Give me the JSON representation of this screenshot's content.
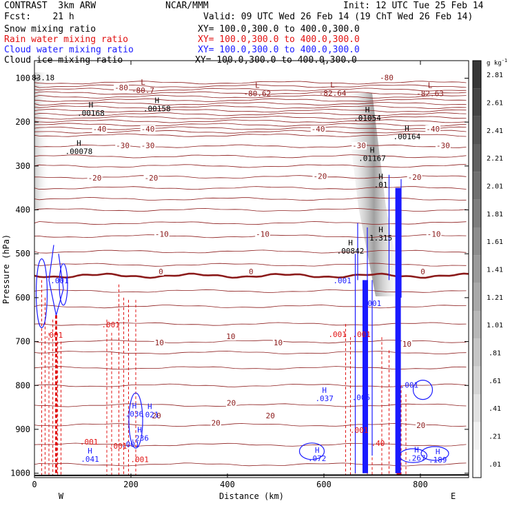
{
  "header": {
    "model": "CONTRAST  3km ARW",
    "center": "NCAR/MMM",
    "init": "Init: 12 UTC Tue 25 Feb 14",
    "fcst": "Fcst:    21 h",
    "valid": "Valid: 09 UTC Wed 26 Feb 14 (19 ChT Wed 26 Feb 14)",
    "fields": [
      {
        "name": "Snow mixing ratio",
        "xy": "XY= 100.0,300.0 to 400.0,300.0",
        "color": "#000000"
      },
      {
        "name": "Rain water mixing ratio",
        "xy": "XY= 100.0,300.0 to 400.0,300.0",
        "color": "#e01010"
      },
      {
        "name": "Cloud water mixing ratio",
        "xy": "XY= 100.0,300.0 to 400.0,300.0",
        "color": "#1a1aff"
      },
      {
        "name": "Cloud ice mixing ratio",
        "xy": "XY= 100.0,300.0 to 400.0,300.0",
        "color": "#000000"
      }
    ]
  },
  "colors": {
    "temperature": "#8b1a1a",
    "rain": "#e01010",
    "cloud_water": "#1a1aff",
    "cloud_ice": "#000000",
    "ground": "#000000"
  },
  "chart_data": {
    "type": "contour cross-section",
    "xlabel": "Distance (km)",
    "ylabel": "Pressure (hPa)",
    "xlim": [
      0,
      900
    ],
    "ylim": [
      1010,
      60
    ],
    "x_ticks": [
      0,
      200,
      400,
      600,
      800
    ],
    "y_ticks": [
      100,
      200,
      300,
      400,
      500,
      600,
      700,
      800,
      900,
      1000
    ],
    "x_end_labels": {
      "left": "W",
      "right": "E"
    },
    "colorbar": {
      "unit": "g kg",
      "unit_exp": "-1",
      "levels": [
        ".01",
        ".21",
        ".41",
        ".61",
        ".81",
        "1.01",
        "1.21",
        "1.41",
        "1.61",
        "1.81",
        "2.01",
        "2.21",
        "2.41",
        "2.61",
        "2.81"
      ]
    },
    "temperature_contours": [
      {
        "value": -80,
        "p": 118
      },
      {
        "value": -40,
        "p": 215
      },
      {
        "value": -30,
        "p": 250
      },
      {
        "value": -20,
        "p": 325
      },
      {
        "value": -10,
        "p": 460
      },
      {
        "value": 0,
        "p": 550
      },
      {
        "value": 10,
        "p": 725
      },
      {
        "value": 20,
        "p": 890
      }
    ],
    "temperature_labels": [
      {
        "text": "-80",
        "x": 180,
        "p": 126
      },
      {
        "text": "-80",
        "x": 730,
        "p": 103
      },
      {
        "text": "-40",
        "x": 135,
        "p": 220
      },
      {
        "text": "-40",
        "x": 235,
        "p": 220
      },
      {
        "text": "-40",
        "x": 588,
        "p": 220
      },
      {
        "text": "-40",
        "x": 826,
        "p": 220
      },
      {
        "text": "-30",
        "x": 183,
        "p": 258
      },
      {
        "text": "-30",
        "x": 235,
        "p": 258
      },
      {
        "text": "-30",
        "x": 673,
        "p": 258
      },
      {
        "text": "-30",
        "x": 847,
        "p": 258
      },
      {
        "text": "-20",
        "x": 125,
        "p": 332
      },
      {
        "text": "-20",
        "x": 242,
        "p": 332
      },
      {
        "text": "-20",
        "x": 592,
        "p": 328
      },
      {
        "text": "-20",
        "x": 788,
        "p": 330
      },
      {
        "text": "-10",
        "x": 264,
        "p": 460
      },
      {
        "text": "-10",
        "x": 473,
        "p": 460
      },
      {
        "text": "-10",
        "x": 828,
        "p": 460
      },
      {
        "text": "0",
        "x": 262,
        "p": 545
      },
      {
        "text": "0",
        "x": 449,
        "p": 545
      },
      {
        "text": "0",
        "x": 805,
        "p": 545
      },
      {
        "text": "10",
        "x": 259,
        "p": 707
      },
      {
        "text": "10",
        "x": 407,
        "p": 693
      },
      {
        "text": "10",
        "x": 505,
        "p": 707
      },
      {
        "text": "10",
        "x": 772,
        "p": 710
      },
      {
        "text": "20",
        "x": 253,
        "p": 873
      },
      {
        "text": "20",
        "x": 376,
        "p": 890
      },
      {
        "text": "20",
        "x": 489,
        "p": 873
      },
      {
        "text": "20",
        "x": 801,
        "p": 895
      },
      {
        "text": "20",
        "x": 408,
        "p": 844
      }
    ],
    "extrema_labels": [
      {
        "kind": "L",
        "value": "-80.7",
        "x": 225,
        "p": 118
      },
      {
        "kind": "L",
        "value": "-80.62",
        "x": 462,
        "p": 125
      },
      {
        "kind": "L",
        "value": "-82.64",
        "x": 618,
        "p": 124
      },
      {
        "kind": "L",
        "value": "-82.63",
        "x": 820,
        "p": 125
      },
      {
        "kind": "H",
        "value": ".00158",
        "x": 254,
        "p": 160
      },
      {
        "kind": "H",
        "value": ".00168",
        "x": 117,
        "p": 170
      },
      {
        "kind": "H",
        "value": ".01054",
        "x": 690,
        "p": 181
      },
      {
        "kind": "H",
        "value": ".00164",
        "x": 772,
        "p": 223
      },
      {
        "kind": "H",
        "value": ".00078",
        "x": 92,
        "p": 257
      },
      {
        "kind": "H",
        "value": ".01167",
        "x": 700,
        "p": 273
      },
      {
        "kind": "H",
        "value": ".01",
        "x": 718,
        "p": 333
      },
      {
        "kind": "H",
        "value": "1.315",
        "x": 718,
        "p": 454
      },
      {
        "kind": "H",
        "value": ".00842",
        "x": 655,
        "p": 484
      },
      {
        "kind": "H",
        "value": ".036",
        "x": 207,
        "p": 855
      },
      {
        "kind": "H",
        "value": ".021",
        "x": 239,
        "p": 857
      },
      {
        "kind": "H",
        "value": ".236",
        "x": 218,
        "p": 910
      },
      {
        "kind": "H",
        "value": ".041",
        "x": 115,
        "p": 958
      },
      {
        "kind": "H",
        "value": ".072",
        "x": 586,
        "p": 957
      },
      {
        "kind": "H",
        "value": ".037",
        "x": 601,
        "p": 820
      },
      {
        "kind": "H",
        "value": ".267",
        "x": 792,
        "p": 956
      },
      {
        "kind": "H",
        "value": ".189",
        "x": 836,
        "p": 960
      }
    ],
    "plain_labels": [
      {
        "text": "83.18",
        "x": 18,
        "p": 105,
        "color": "#000000"
      },
      {
        "text": ".001",
        "x": 52,
        "p": 567,
        "color": "#1a1aff"
      },
      {
        "text": ".001",
        "x": 700,
        "p": 619,
        "color": "#1a1aff"
      },
      {
        "text": ".001",
        "x": 638,
        "p": 567,
        "color": "#1a1aff"
      },
      {
        "text": ".001",
        "x": 40,
        "p": 691,
        "color": "#e01010"
      },
      {
        "text": ".001",
        "x": 158,
        "p": 668,
        "color": "#e01010"
      },
      {
        "text": ".001",
        "x": 628,
        "p": 690,
        "color": "#e01010"
      },
      {
        "text": ".001",
        "x": 173,
        "p": 944,
        "color": "#e01010"
      },
      {
        "text": ".001",
        "x": 678,
        "p": 690,
        "color": "#e01010"
      },
      {
        "text": ".001",
        "x": 777,
        "p": 805,
        "color": "#1a1aff"
      },
      {
        "text": ".001",
        "x": 199,
        "p": 940,
        "color": "#1a1aff"
      },
      {
        "text": ".001",
        "x": 218,
        "p": 975,
        "color": "#e01010"
      },
      {
        "text": ".001",
        "x": 113,
        "p": 935,
        "color": "#e01010"
      },
      {
        "text": ".005",
        "x": 677,
        "p": 833,
        "color": "#1a1aff"
      },
      {
        "text": ".001",
        "x": 673,
        "p": 908,
        "color": "#e01010"
      },
      {
        "text": ".40",
        "x": 712,
        "p": 938,
        "color": "#e01010"
      }
    ]
  }
}
